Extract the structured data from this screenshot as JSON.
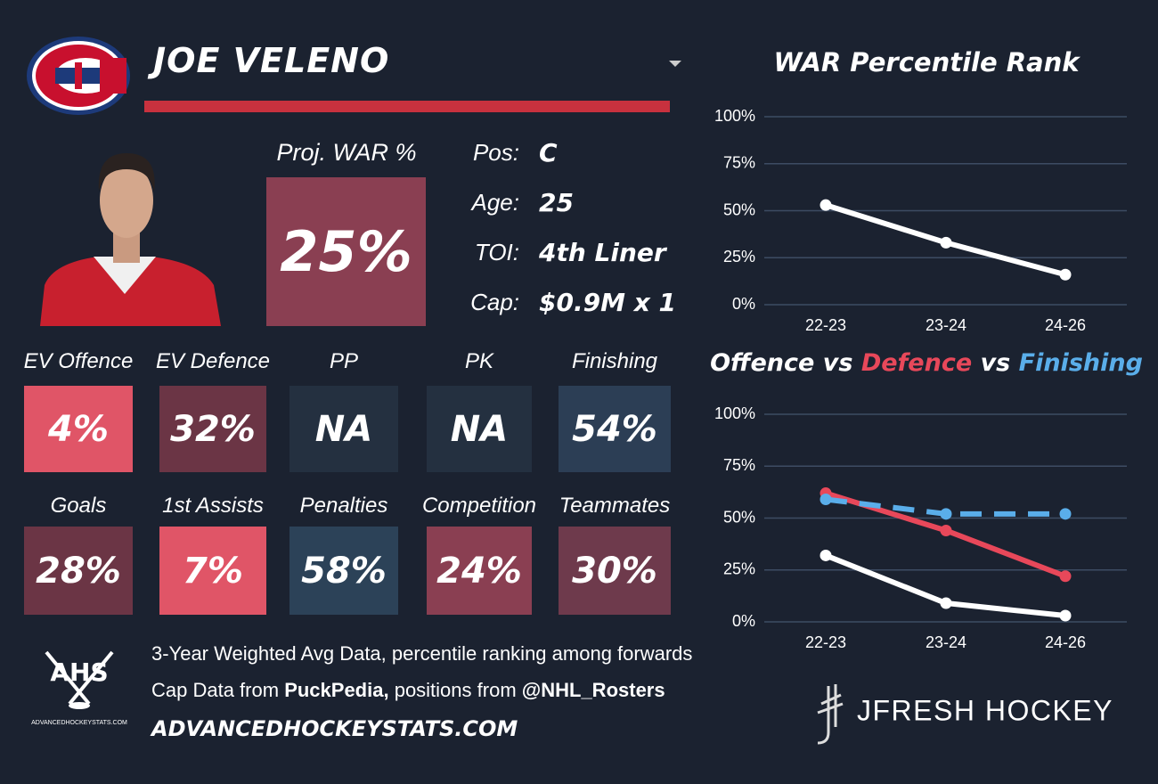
{
  "player": {
    "name": "JOE VELENO",
    "proj_war_label": "Proj. WAR %",
    "proj_war": "25%",
    "proj_war_color": "#8a3f52",
    "info": [
      {
        "label": "Pos:",
        "value": "C"
      },
      {
        "label": "Age:",
        "value": "25"
      },
      {
        "label": "TOI:",
        "value": "4th Liner"
      },
      {
        "label": "Cap:",
        "value": "$0.9M x 1"
      }
    ]
  },
  "tiles": [
    {
      "label": "EV Offence",
      "value": "4%",
      "color": "#e05567"
    },
    {
      "label": "EV Defence",
      "value": "32%",
      "color": "#6b3545"
    },
    {
      "label": "PP",
      "value": "NA",
      "color": "#243040"
    },
    {
      "label": "PK",
      "value": "NA",
      "color": "#243040"
    },
    {
      "label": "Finishing",
      "value": "54%",
      "color": "#2c3e55"
    },
    {
      "label": "Goals",
      "value": "28%",
      "color": "#6b3545"
    },
    {
      "label": "1st Assists",
      "value": "7%",
      "color": "#e05567"
    },
    {
      "label": "Penalties",
      "value": "58%",
      "color": "#2c4258"
    },
    {
      "label": "Competition",
      "value": "24%",
      "color": "#8a3f52"
    },
    {
      "label": "Teammates",
      "value": "30%",
      "color": "#6e3a4c"
    }
  ],
  "footer": {
    "line1": "3-Year Weighted Avg Data, percentile ranking among forwards",
    "line2": [
      "Cap Data from",
      "PuckPedia,",
      "positions from",
      "@NHL_Rosters"
    ],
    "url": "ADVANCEDHOCKEYSTATS.COM",
    "ahs_logo": "AHS",
    "ahs_logo_small": "ADVANCEDHOCKEYSTATS.COM",
    "brand": "JFRESH HOCKEY"
  },
  "chart_data": [
    {
      "type": "line",
      "title": "WAR Percentile Rank",
      "categories": [
        "22-23",
        "23-24",
        "24-26"
      ],
      "series": [
        {
          "color": "#ffffff",
          "values": [
            53,
            33,
            16
          ]
        }
      ],
      "ylim": [
        0,
        100
      ],
      "yticks": [
        {
          "value": 0,
          "label": "0%"
        },
        {
          "value": 25,
          "label": "25%"
        },
        {
          "value": 50,
          "label": "50%"
        },
        {
          "value": 75,
          "label": "75%"
        },
        {
          "value": 100,
          "label": "100%"
        }
      ],
      "grid": true
    },
    {
      "type": "line",
      "title_separator": "vs",
      "categories": [
        "22-23",
        "23-24",
        "24-26"
      ],
      "series": [
        {
          "name": "Offence",
          "color": "#ffffff",
          "values": [
            32,
            9,
            3
          ]
        },
        {
          "name": "Defence",
          "color": "#e8485a",
          "values": [
            62,
            44,
            22
          ]
        },
        {
          "name": "Finishing",
          "color": "#5aaeea",
          "dashed": true,
          "values": [
            59,
            52,
            52
          ]
        }
      ],
      "ylim": [
        0,
        100
      ],
      "yticks": [
        {
          "value": 0,
          "label": "0%"
        },
        {
          "value": 25,
          "label": "25%"
        },
        {
          "value": 50,
          "label": "50%"
        },
        {
          "value": 75,
          "label": "75%"
        },
        {
          "value": 100,
          "label": "100%"
        }
      ],
      "grid": true
    }
  ]
}
